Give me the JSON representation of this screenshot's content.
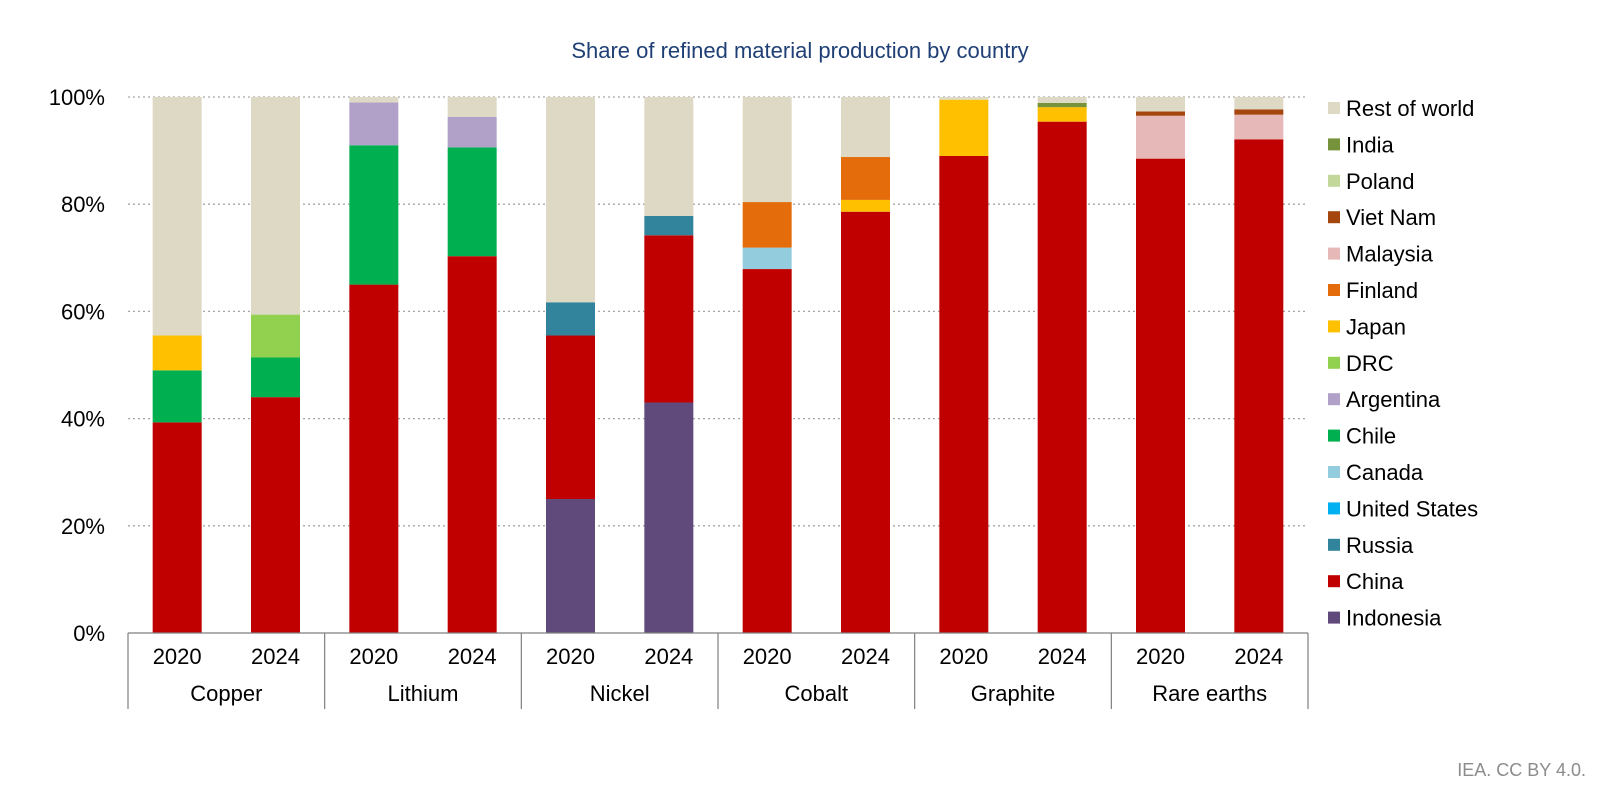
{
  "chart_data": {
    "type": "stacked-bar",
    "title": "Share of refined material production by country",
    "xlabel": "",
    "ylabel": "",
    "ylim": [
      0,
      100
    ],
    "yticks": [
      0,
      20,
      40,
      60,
      80,
      100
    ],
    "ytick_labels": [
      "0%",
      "20%",
      "40%",
      "60%",
      "80%",
      "100%"
    ],
    "groups": [
      "Copper",
      "Lithium",
      "Nickel",
      "Cobalt",
      "Graphite",
      "Rare earths"
    ],
    "years": [
      "2020",
      "2024"
    ],
    "categories": [
      "Copper 2020",
      "Copper 2024",
      "Lithium 2020",
      "Lithium 2024",
      "Nickel 2020",
      "Nickel 2024",
      "Cobalt 2020",
      "Cobalt 2024",
      "Graphite 2020",
      "Graphite 2024",
      "Rare earths 2020",
      "Rare earths 2024"
    ],
    "legend_position": "right",
    "series": [
      {
        "name": "Indonesia",
        "color": "#604a7b",
        "values": [
          0,
          0,
          0,
          0,
          25,
          43,
          0,
          0,
          0,
          0,
          0,
          0
        ]
      },
      {
        "name": "China",
        "color": "#c00000",
        "values": [
          39.3,
          44,
          65,
          70.3,
          30.5,
          31.2,
          67.9,
          78.6,
          89,
          95.4,
          88.5,
          92.1
        ]
      },
      {
        "name": "Russia",
        "color": "#31849b",
        "values": [
          0,
          0,
          0,
          0,
          6.2,
          3.6,
          0,
          0,
          0,
          0,
          0,
          0
        ]
      },
      {
        "name": "United States",
        "color": "#00b0f0",
        "values": [
          0,
          0,
          0,
          0,
          0,
          0,
          0,
          0,
          0,
          0,
          0,
          0
        ]
      },
      {
        "name": "Canada",
        "color": "#93cddd",
        "values": [
          0,
          0,
          0,
          0,
          0,
          0,
          4,
          0,
          0,
          0,
          0,
          0
        ]
      },
      {
        "name": "Chile",
        "color": "#00b050",
        "values": [
          9.7,
          7.4,
          26,
          20.3,
          0,
          0,
          0,
          0,
          0,
          0,
          0,
          0
        ]
      },
      {
        "name": "Argentina",
        "color": "#b1a0c7",
        "values": [
          0,
          0,
          8,
          5.7,
          0,
          0,
          0,
          0,
          0,
          0,
          0,
          0
        ]
      },
      {
        "name": "DRC",
        "color": "#92d050",
        "values": [
          0,
          8,
          0,
          0,
          0,
          0,
          0,
          0,
          0,
          0,
          0,
          0
        ]
      },
      {
        "name": "Japan",
        "color": "#ffc000",
        "values": [
          6.5,
          0,
          0,
          0,
          0,
          0,
          0,
          2.2,
          10.5,
          2.7,
          0,
          0
        ]
      },
      {
        "name": "Finland",
        "color": "#e46c0a",
        "values": [
          0,
          0,
          0,
          0,
          0,
          0,
          8.5,
          8,
          0,
          0,
          0,
          0
        ]
      },
      {
        "name": "Malaysia",
        "color": "#e6b9b8",
        "values": [
          0,
          0,
          0,
          0,
          0,
          0,
          0,
          0,
          0,
          0,
          8,
          4.6
        ]
      },
      {
        "name": "Viet Nam",
        "color": "#a5460f",
        "values": [
          0,
          0,
          0,
          0,
          0,
          0,
          0,
          0,
          0,
          0,
          0.8,
          1
        ]
      },
      {
        "name": "Poland",
        "color": "#c4d79b",
        "values": [
          0,
          0,
          0,
          0,
          0,
          0,
          0,
          0,
          0,
          0,
          0,
          0
        ]
      },
      {
        "name": "India",
        "color": "#76933c",
        "values": [
          0,
          0,
          0,
          0,
          0,
          0,
          0,
          0,
          0,
          0.8,
          0,
          0
        ]
      },
      {
        "name": "Rest of world",
        "color": "#ddd9c4",
        "values": [
          44.5,
          40.6,
          1,
          3.7,
          38.3,
          22.2,
          19.6,
          11.2,
          0.5,
          1.1,
          2.7,
          2.3
        ]
      }
    ]
  },
  "credit": "IEA. CC BY 4.0."
}
